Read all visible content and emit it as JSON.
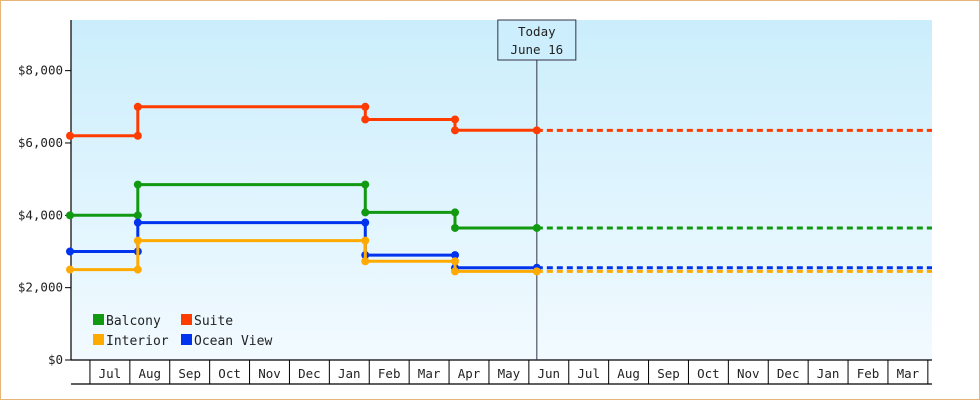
{
  "chart_data": {
    "type": "line",
    "title": "",
    "xlabel": "",
    "ylabel": "",
    "ylim": [
      0,
      9400
    ],
    "y_ticks": [
      "$0",
      "$2,000",
      "$4,000",
      "$6,000",
      "$8,000"
    ],
    "y_tick_values": [
      0,
      2000,
      4000,
      6000,
      8000
    ],
    "months": [
      "Jul",
      "Aug",
      "Sep",
      "Oct",
      "Nov",
      "Dec",
      "Jan",
      "Feb",
      "Mar",
      "Apr",
      "May",
      "Jun",
      "Jul",
      "Aug",
      "Sep",
      "Oct",
      "Nov",
      "Dec",
      "Jan",
      "Feb",
      "Mar"
    ],
    "grid": false,
    "legend_position": "bottom-left",
    "today": {
      "label": "Today",
      "date": "June 16",
      "x": 11.7
    },
    "series": [
      {
        "name": "Suite",
        "color": "#ff3c00",
        "points": [
          [
            0,
            6200
          ],
          [
            1.7,
            6200
          ],
          [
            1.7,
            7000
          ],
          [
            7.4,
            7000
          ],
          [
            7.4,
            6650
          ],
          [
            9.65,
            6650
          ],
          [
            9.65,
            6350
          ],
          [
            11.7,
            6350
          ]
        ],
        "projection": 6350
      },
      {
        "name": "Balcony",
        "color": "#119911",
        "points": [
          [
            0,
            4000
          ],
          [
            1.7,
            4000
          ],
          [
            1.7,
            4850
          ],
          [
            7.4,
            4850
          ],
          [
            7.4,
            4080
          ],
          [
            9.65,
            4080
          ],
          [
            9.65,
            3650
          ],
          [
            11.7,
            3650
          ]
        ],
        "projection": 3650
      },
      {
        "name": "Ocean View",
        "color": "#0033ee",
        "points": [
          [
            0,
            3000
          ],
          [
            1.7,
            3000
          ],
          [
            1.7,
            3800
          ],
          [
            7.4,
            3800
          ],
          [
            7.4,
            2900
          ],
          [
            9.65,
            2900
          ],
          [
            9.65,
            2550
          ],
          [
            11.7,
            2550
          ]
        ],
        "projection": 2550
      },
      {
        "name": "Interior",
        "color": "#ffaa00",
        "points": [
          [
            0,
            2500
          ],
          [
            1.7,
            2500
          ],
          [
            1.7,
            3300
          ],
          [
            7.4,
            3300
          ],
          [
            7.4,
            2730
          ],
          [
            9.65,
            2730
          ],
          [
            9.65,
            2450
          ],
          [
            11.7,
            2450
          ]
        ],
        "projection": 2450
      }
    ],
    "legend": [
      {
        "name": "Balcony",
        "color": "#119911"
      },
      {
        "name": "Suite",
        "color": "#ff3c00"
      },
      {
        "name": "Interior",
        "color": "#ffaa00"
      },
      {
        "name": "Ocean View",
        "color": "#0033ee"
      }
    ]
  }
}
